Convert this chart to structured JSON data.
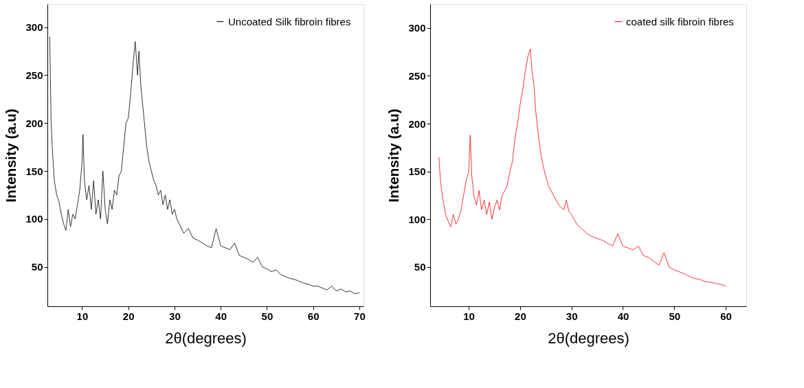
{
  "chart_data": [
    {
      "type": "line",
      "xlabel": "2θ(degrees)",
      "ylabel": "Intensity (a.u)",
      "xlim": [
        2.5,
        70.9
      ],
      "ylim": [
        9,
        324
      ],
      "xticks": [
        10,
        20,
        30,
        40,
        50,
        60,
        70
      ],
      "yticks": [
        50,
        100,
        150,
        200,
        250,
        300
      ],
      "grid": false,
      "legend": "top right",
      "marker": "none",
      "line_style": "solid",
      "series": [
        {
          "name": "Uncoated Silk fibroin fibres",
          "color": "#000000",
          "x": [
            3.0,
            3.3,
            3.6,
            4.0,
            4.5,
            5.0,
            5.5,
            6.0,
            6.5,
            7.0,
            7.5,
            8.0,
            8.5,
            9.0,
            9.5,
            10.0,
            10.2,
            10.5,
            11,
            11.5,
            12,
            12.5,
            13,
            13.5,
            14,
            14.5,
            15,
            15.5,
            16,
            16.5,
            17,
            17.5,
            18,
            18.5,
            19,
            19.5,
            20,
            20.5,
            21,
            21.5,
            22,
            22.3,
            22.7,
            23,
            23.5,
            24,
            24.5,
            25,
            25.5,
            26,
            26.5,
            27,
            27.5,
            28,
            28.5,
            29,
            29.5,
            30,
            30.5,
            31,
            32,
            33,
            34,
            35,
            36,
            37,
            38,
            39,
            40,
            41,
            42,
            43,
            44,
            45,
            46,
            47,
            48,
            49,
            50,
            51,
            52,
            53,
            54,
            55,
            56,
            57,
            58,
            59,
            60,
            61,
            62,
            63,
            64,
            65,
            66,
            67,
            68,
            69,
            70
          ],
          "values": [
            290,
            200,
            170,
            140,
            125,
            118,
            105,
            95,
            88,
            110,
            92,
            105,
            100,
            115,
            130,
            160,
            188,
            140,
            120,
            135,
            110,
            140,
            105,
            120,
            100,
            150,
            110,
            95,
            120,
            110,
            130,
            125,
            145,
            150,
            175,
            200,
            205,
            230,
            260,
            285,
            250,
            275,
            240,
            225,
            200,
            175,
            160,
            150,
            140,
            135,
            125,
            130,
            115,
            125,
            110,
            120,
            105,
            110,
            100,
            95,
            85,
            90,
            80,
            78,
            75,
            72,
            70,
            90,
            72,
            70,
            68,
            75,
            62,
            60,
            58,
            55,
            60,
            50,
            48,
            45,
            47,
            42,
            40,
            38,
            37,
            35,
            33,
            32,
            30,
            30,
            28,
            26,
            30,
            25,
            27,
            24,
            25,
            22,
            23
          ]
        }
      ]
    },
    {
      "type": "line",
      "xlabel": "2θ(degrees)",
      "ylabel": "Intensity (a.u)",
      "xlim": [
        2.5,
        64
      ],
      "ylim": [
        9,
        325
      ],
      "xticks": [
        10,
        20,
        30,
        40,
        50,
        60
      ],
      "yticks": [
        50,
        100,
        150,
        200,
        250,
        300
      ],
      "grid": false,
      "legend": "top right",
      "marker": "none",
      "line_style": "solid",
      "series": [
        {
          "name": "coated silk fibroin fibres",
          "color": "#ff0000",
          "x": [
            4.2,
            4.5,
            5,
            5.5,
            6,
            6.5,
            7,
            7.5,
            8,
            8.5,
            9,
            9.5,
            10,
            10.3,
            10.6,
            11,
            11.5,
            12,
            12.5,
            13,
            13.5,
            14,
            14.5,
            15,
            15.5,
            16,
            16.5,
            17,
            17.5,
            18,
            18.5,
            19,
            19.5,
            20,
            20.5,
            21,
            21.5,
            22,
            22.3,
            22.7,
            23,
            23.5,
            24,
            24.5,
            25,
            25.5,
            26,
            26.5,
            27,
            27.5,
            28,
            28.5,
            29,
            29.5,
            30,
            30.5,
            31,
            32,
            33,
            34,
            35,
            36,
            37,
            38,
            39,
            40,
            41,
            42,
            43,
            44,
            45,
            46,
            47,
            48,
            49,
            50,
            51,
            52,
            53,
            54,
            55,
            56,
            57,
            58,
            59,
            60
          ],
          "values": [
            165,
            140,
            120,
            105,
            98,
            92,
            105,
            95,
            100,
            110,
            125,
            140,
            150,
            188,
            145,
            125,
            115,
            130,
            110,
            120,
            105,
            118,
            100,
            112,
            120,
            110,
            125,
            130,
            135,
            150,
            160,
            185,
            200,
            220,
            235,
            255,
            270,
            278,
            255,
            240,
            215,
            190,
            170,
            155,
            145,
            135,
            130,
            125,
            120,
            115,
            112,
            110,
            120,
            108,
            105,
            100,
            95,
            90,
            85,
            82,
            80,
            78,
            75,
            72,
            85,
            72,
            70,
            68,
            72,
            62,
            60,
            56,
            52,
            65,
            50,
            47,
            45,
            43,
            40,
            38,
            37,
            35,
            34,
            33,
            32,
            30
          ]
        }
      ]
    }
  ]
}
